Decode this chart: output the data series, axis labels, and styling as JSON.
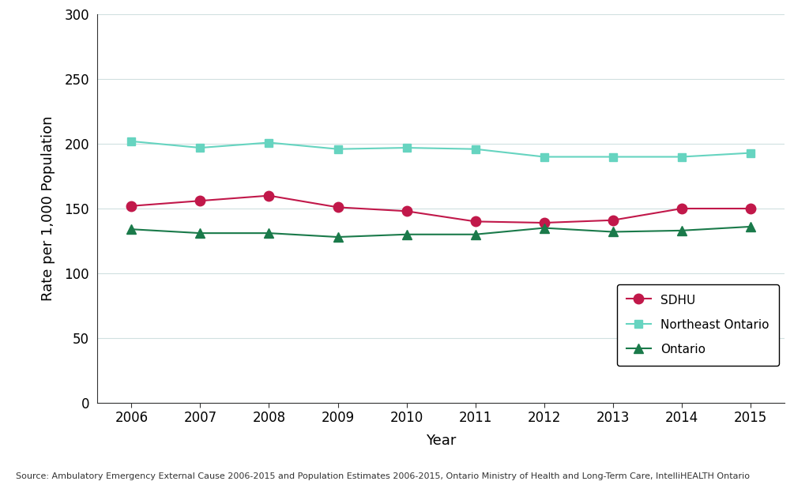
{
  "years": [
    2006,
    2007,
    2008,
    2009,
    2010,
    2011,
    2012,
    2013,
    2014,
    2015
  ],
  "sdhu": [
    152,
    156,
    160,
    151,
    148,
    140,
    139,
    141,
    150,
    150
  ],
  "northeast_ontario": [
    202,
    197,
    201,
    196,
    197,
    196,
    190,
    190,
    190,
    193
  ],
  "ontario": [
    134,
    131,
    131,
    128,
    130,
    130,
    135,
    132,
    133,
    136
  ],
  "sdhu_color": "#c1184a",
  "northeast_color": "#66d4c0",
  "ontario_color": "#1a7a4a",
  "ylabel": "Rate per 1,000 Population",
  "xlabel": "Year",
  "ylim": [
    0,
    300
  ],
  "yticks": [
    0,
    50,
    100,
    150,
    200,
    250,
    300
  ],
  "source_text": "Source: Ambulatory Emergency External Cause 2006-2015 and Population Estimates 2006-2015, Ontario Ministry of Health and Long-Term Care, IntelliHEALTH Ontario",
  "legend_labels": [
    "SDHU",
    "Northeast Ontario",
    "Ontario"
  ],
  "background_color": "#ffffff",
  "grid_color": "#d0e0e0"
}
